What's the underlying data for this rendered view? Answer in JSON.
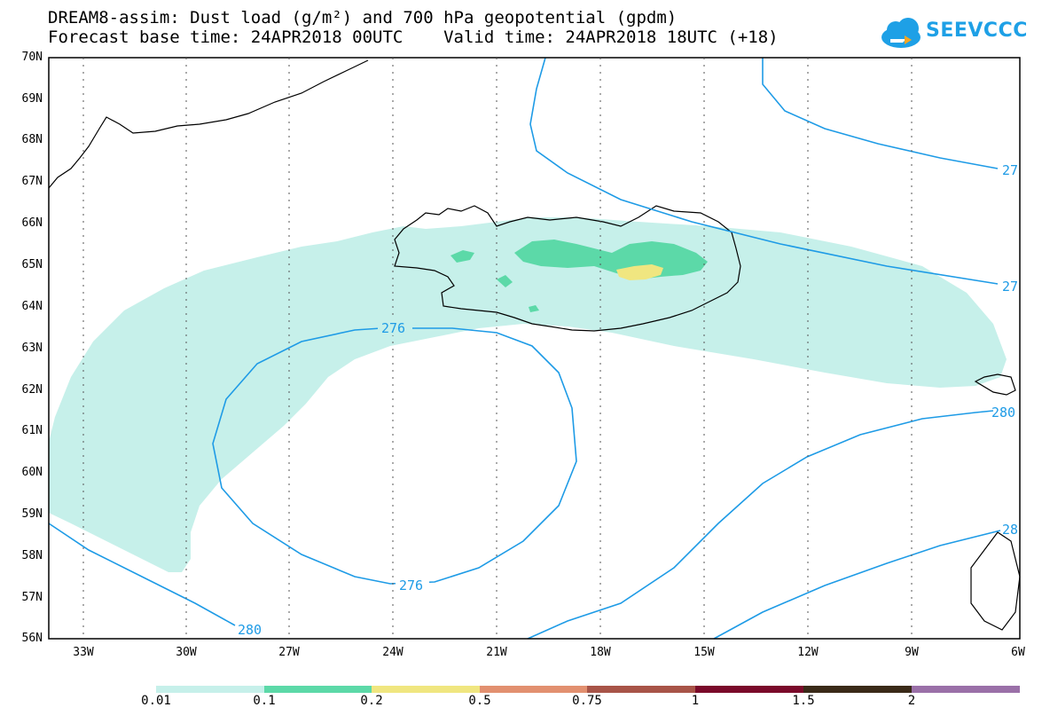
{
  "title": {
    "line1": "DREAM8-assim: Dust load (g/m²) and 700 hPa geopotential (gpdm)",
    "line2": "Forecast base time: 24APR2018 00UTC    Valid time: 24APR2018 18UTC (+18)"
  },
  "logo": {
    "text": "SEEVCCC",
    "icon": "cloud-icon",
    "color": "#1ea0e6"
  },
  "axes": {
    "lat_labels": [
      "70N",
      "69N",
      "68N",
      "67N",
      "66N",
      "65N",
      "64N",
      "63N",
      "62N",
      "61N",
      "60N",
      "59N",
      "58N",
      "57N",
      "56N"
    ],
    "lon_labels": [
      "33W",
      "30W",
      "27W",
      "24W",
      "21W",
      "18W",
      "15W",
      "12W",
      "9W",
      "6W"
    ]
  },
  "contours": {
    "color": "#1e9be6",
    "labels": [
      "276",
      "276",
      "280",
      "280",
      "27",
      "27",
      "28"
    ]
  },
  "colorbar": {
    "labels": [
      "0.01",
      "0.1",
      "0.2",
      "0.5",
      "0.75",
      "1",
      "1.5",
      "2"
    ],
    "colors": [
      "#c6f0ea",
      "#5cd9a8",
      "#f0e680",
      "#e29070",
      "#a85448",
      "#7a0a2a",
      "#3a2a18",
      "#9a70a8"
    ]
  },
  "dust_colors": {
    "low": "#c6f0ea",
    "mid": "#5cd9a8",
    "high": "#f0e680"
  }
}
